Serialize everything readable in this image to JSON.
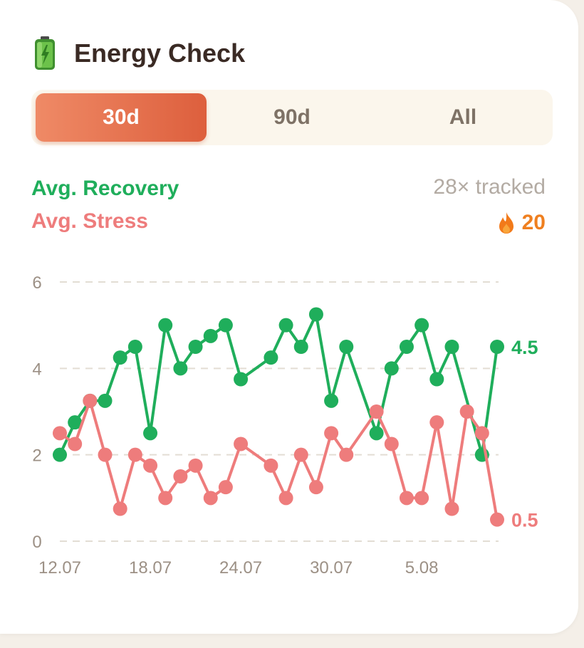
{
  "card": {
    "title": "Energy Check",
    "icon": "battery-icon"
  },
  "tabs": [
    {
      "label": "30d",
      "active": true
    },
    {
      "label": "90d",
      "active": false
    },
    {
      "label": "All",
      "active": false
    }
  ],
  "legend": {
    "recovery_label": "Avg. Recovery",
    "stress_label": "Avg. Stress",
    "tracked": "28× tracked",
    "streak_value": "20",
    "streak_icon": "flame-icon"
  },
  "colors": {
    "recovery": "#1fae5b",
    "stress": "#ee7c7c",
    "accent": "#e16a45",
    "streak": "#ef7f1f"
  },
  "chart_data": {
    "type": "line",
    "ylim": [
      0,
      6
    ],
    "yticks": [
      0,
      2,
      4,
      6
    ],
    "grid": true,
    "x_tick_labels": [
      "12.07",
      "18.07",
      "24.07",
      "30.07",
      "5.08"
    ],
    "x_tick_index": [
      0,
      6,
      12,
      18,
      24
    ],
    "series": [
      {
        "name": "Avg. Recovery",
        "color": "#1fae5b",
        "end_label": "4.5",
        "values": [
          2,
          2.75,
          3.25,
          3.25,
          4.25,
          4.5,
          2.5,
          5,
          4,
          4.5,
          4.75,
          5,
          3.75,
          null,
          4.25,
          5,
          4.5,
          5.25,
          3.25,
          4.5,
          null,
          2.5,
          4,
          4.5,
          5,
          3.75,
          4.5,
          null,
          2,
          4.5
        ],
        "points": [
          [
            0,
            2
          ],
          [
            1,
            2.75
          ],
          [
            2,
            3.25
          ],
          [
            3,
            3.25
          ],
          [
            4,
            4.25
          ],
          [
            5,
            4.5
          ],
          [
            6,
            2.5
          ],
          [
            7,
            5
          ],
          [
            8,
            4
          ],
          [
            9,
            4.5
          ],
          [
            10,
            4.75
          ],
          [
            11,
            5
          ],
          [
            12,
            3.75
          ],
          [
            14,
            4.25
          ],
          [
            15,
            5
          ],
          [
            16,
            4.5
          ],
          [
            17,
            5.25
          ],
          [
            18,
            3.25
          ],
          [
            19,
            4.5
          ],
          [
            21,
            2.5
          ],
          [
            22,
            4
          ],
          [
            23,
            4.5
          ],
          [
            24,
            5
          ],
          [
            25,
            3.75
          ],
          [
            26,
            4.5
          ],
          [
            28,
            2
          ],
          [
            29,
            4.5
          ]
        ]
      },
      {
        "name": "Avg. Stress",
        "color": "#ee7c7c",
        "end_label": "0.5",
        "points": [
          [
            0,
            2.5
          ],
          [
            1,
            2.25
          ],
          [
            2,
            3.25
          ],
          [
            3,
            2
          ],
          [
            4,
            0.75
          ],
          [
            5,
            2
          ],
          [
            6,
            1.75
          ],
          [
            7,
            1
          ],
          [
            8,
            1.5
          ],
          [
            9,
            1.75
          ],
          [
            10,
            1
          ],
          [
            11,
            1.25
          ],
          [
            12,
            2.25
          ],
          [
            14,
            1.75
          ],
          [
            15,
            1
          ],
          [
            16,
            2
          ],
          [
            17,
            1.25
          ],
          [
            18,
            2.5
          ],
          [
            19,
            2
          ],
          [
            21,
            3
          ],
          [
            22,
            2.25
          ],
          [
            23,
            1
          ],
          [
            24,
            1
          ],
          [
            25,
            2.75
          ],
          [
            26,
            0.75
          ],
          [
            27,
            3
          ],
          [
            28,
            2.5
          ],
          [
            29,
            0.5
          ]
        ]
      }
    ],
    "x_range": [
      0,
      29
    ]
  }
}
